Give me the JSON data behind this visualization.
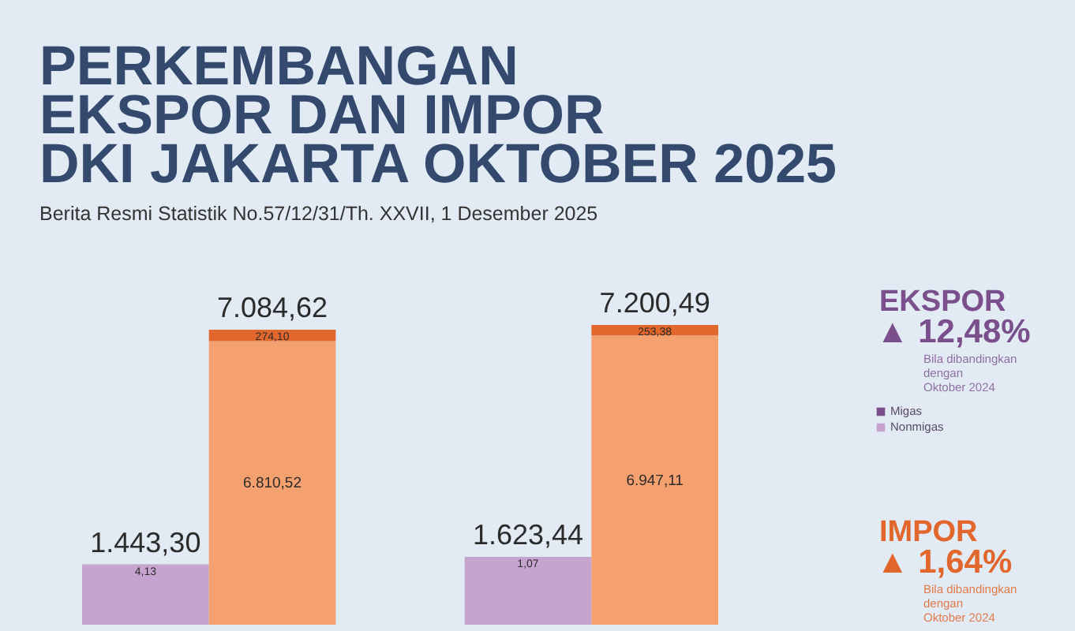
{
  "chart_data": {
    "type": "bar",
    "title": "PERKEMBANGAN\nEKSPOR DAN IMPOR\nDKI JAKARTA OKTOBER 2025",
    "subtitle": "Berita Resmi Statistik No.57/12/31/Th. XXVII, 1 Desember 2025",
    "categories": [
      null,
      null,
      null,
      null
    ],
    "stacked": true,
    "tick_labels": false,
    "legend": "right",
    "series": [
      {
        "name": "Nonmigas",
        "colors": [
          "#c6a4cf",
          "#f4a06f",
          "#c6a4cf",
          "#f4a06f"
        ],
        "values": [
          1439.17,
          6810.52,
          1622.37,
          6947.11
        ],
        "value_labels": [
          null,
          "6.810,52",
          null,
          "6.947,11"
        ]
      },
      {
        "name": "Migas",
        "colors": [
          "#7a4f8c",
          "#e2672c",
          "#7a4f8c",
          "#e2672c"
        ],
        "values": [
          4.13,
          274.1,
          1.07,
          253.38
        ],
        "value_labels": [
          "4,13",
          "274,10",
          "1,07",
          "253,38"
        ]
      }
    ],
    "totals": [
      "1.443,30",
      "7.084,62",
      "1.623,44",
      "7.200,49"
    ],
    "annotations": [
      "EKSPOR",
      "▲ 12,48%",
      "Bila dibandingkan\ndengan\nOktober 2024",
      "IMPOR",
      "▲ 1,64%",
      "Bila dibandingkan\ndengan\nOktober 2024"
    ]
  }
}
